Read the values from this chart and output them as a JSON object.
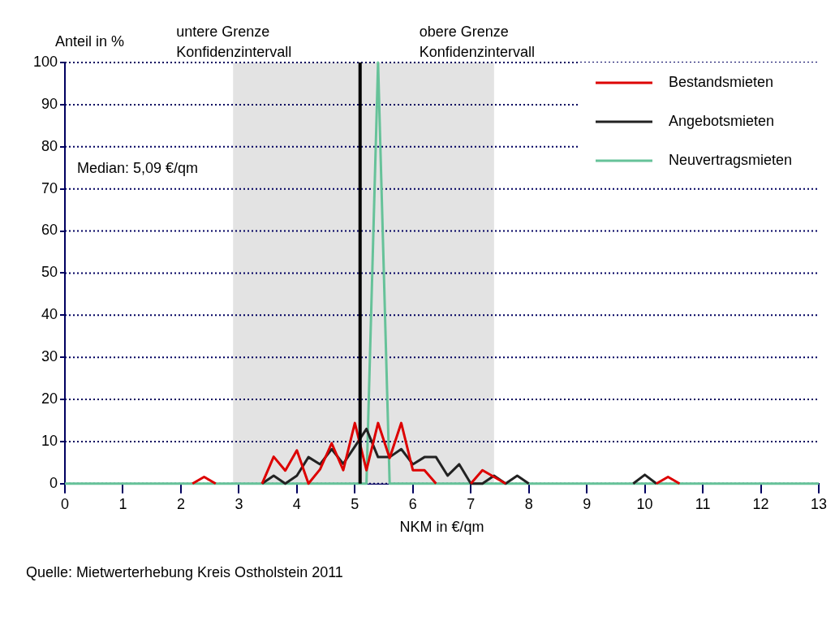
{
  "chart_data": {
    "type": "line",
    "xlabel": "NKM in €/qm",
    "ylabel": "Anteil in %",
    "x": [
      0,
      0.2,
      0.4,
      0.6,
      0.8,
      1,
      1.2,
      1.4,
      1.6,
      1.8,
      2,
      2.2,
      2.4,
      2.6,
      2.8,
      3,
      3.2,
      3.4,
      3.6,
      3.8,
      4,
      4.2,
      4.4,
      4.6,
      4.8,
      5,
      5.2,
      5.4,
      5.6,
      5.8,
      6,
      6.2,
      6.4,
      6.6,
      6.8,
      7,
      7.2,
      7.4,
      7.6,
      7.8,
      8,
      8.2,
      8.4,
      8.6,
      8.8,
      9,
      9.2,
      9.4,
      9.6,
      9.8,
      10,
      10.2,
      10.4,
      10.6,
      10.8,
      11,
      11.2,
      11.4,
      11.6,
      11.8,
      12,
      12.2,
      12.4,
      12.6,
      12.8,
      13
    ],
    "series": [
      {
        "name": "Bestandsmieten",
        "color": "#dd0000",
        "values": [
          null,
          null,
          null,
          null,
          null,
          null,
          null,
          null,
          null,
          null,
          null,
          0,
          1.6,
          0,
          null,
          null,
          null,
          0,
          6.4,
          3.1,
          7.9,
          0,
          3.4,
          9.6,
          3.2,
          14.4,
          3.2,
          14.4,
          6.1,
          14.4,
          3.2,
          3.2,
          0,
          null,
          null,
          0,
          3.2,
          1.6,
          0,
          null,
          null,
          null,
          null,
          null,
          null,
          null,
          null,
          null,
          null,
          null,
          null,
          0,
          1.6,
          0,
          null,
          null,
          null,
          null,
          null,
          null,
          null,
          null,
          null,
          null,
          null,
          null
        ]
      },
      {
        "name": "Angebotsmieten",
        "color": "#222222",
        "values": [
          null,
          null,
          null,
          null,
          null,
          null,
          null,
          null,
          null,
          null,
          null,
          null,
          null,
          null,
          null,
          null,
          null,
          0,
          1.9,
          0,
          1.9,
          6.3,
          4.6,
          8.2,
          4.7,
          8.8,
          13,
          6.3,
          6.3,
          8.2,
          4.6,
          6.3,
          6.3,
          1.9,
          4.6,
          0,
          0,
          1.9,
          0,
          1.9,
          0,
          null,
          null,
          null,
          null,
          null,
          null,
          null,
          null,
          0,
          2.1,
          0,
          null,
          null,
          null,
          null,
          null,
          null,
          null,
          null,
          null,
          null,
          null,
          null,
          null,
          null
        ]
      },
      {
        "name": "Neuvertragsmieten",
        "color": "#66c299",
        "values": [
          0,
          0,
          0,
          0,
          0,
          0,
          0,
          0,
          0,
          0,
          0,
          0,
          0,
          0,
          0,
          0,
          0,
          0,
          0,
          0,
          0,
          0,
          0,
          0,
          0,
          0,
          0,
          100,
          0,
          0,
          0,
          0,
          0,
          0,
          0,
          0,
          0,
          0,
          0,
          0,
          0,
          0,
          0,
          0,
          0,
          0,
          0,
          0,
          0,
          0,
          0,
          0,
          0,
          0,
          0,
          0,
          0,
          0,
          0,
          0,
          0,
          0,
          0,
          0,
          0,
          0
        ]
      }
    ],
    "xlim": [
      0,
      13
    ],
    "xticks": [
      0,
      1,
      2,
      3,
      4,
      5,
      6,
      7,
      8,
      9,
      10,
      11,
      12,
      13
    ],
    "ylim": [
      0,
      100
    ],
    "yticks": [
      0,
      10,
      20,
      30,
      40,
      50,
      60,
      70,
      80,
      90,
      100
    ],
    "grid": "y",
    "legend": "top right",
    "marker": "none",
    "line_style": "solid",
    "ref_lines": [
      {
        "axis": "x",
        "value": 5.09,
        "color": "#000000"
      }
    ],
    "bands": [
      {
        "axis": "x",
        "from": 2.9,
        "to": 7.4,
        "color": "#e3e3e3"
      }
    ],
    "annotations": [
      "untere Grenze\nKonfidenzintervall",
      "obere Grenze\nKonfidenzintervall",
      "Median: 5,09 €/qm",
      "Quelle: Mietwerterhebung Kreis Ostholstein 2011"
    ]
  }
}
